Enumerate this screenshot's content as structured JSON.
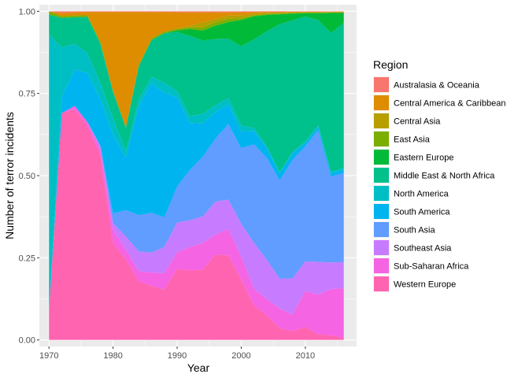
{
  "chart_data": {
    "type": "area",
    "stacked": "fill",
    "xlabel": "Year",
    "ylabel": "Number of terror incidents",
    "xlim": [
      1968.5,
      2018.0
    ],
    "ylim": [
      -0.02,
      1.02
    ],
    "x_ticks": [
      1970,
      1980,
      1990,
      2000,
      2010
    ],
    "x_tick_labels": [
      "1970",
      "1980",
      "1990",
      "2000",
      "2010"
    ],
    "y_ticks": [
      0,
      0.25,
      0.5,
      0.75,
      1.0
    ],
    "y_tick_labels": [
      "0.00",
      "0.25",
      "0.50",
      "0.75",
      "1.00"
    ],
    "grid": true,
    "background": "#EBEBEB",
    "legend": {
      "title": "Region",
      "position": "right"
    },
    "x": [
      1970,
      1972,
      1974,
      1976,
      1978,
      1980,
      1982,
      1984,
      1986,
      1988,
      1990,
      1992,
      1994,
      1996,
      1998,
      2000,
      2002,
      2004,
      2006,
      2008,
      2010,
      2012,
      2014,
      2016
    ],
    "series": [
      {
        "name": "Australasia & Oceania",
        "color": "#F8766D",
        "values": [
          0.0,
          0.005,
          0.003,
          0.002,
          0.002,
          0.002,
          0.002,
          0.002,
          0.002,
          0.002,
          0.003,
          0.003,
          0.003,
          0.003,
          0.003,
          0.003,
          0.002,
          0.002,
          0.002,
          0.001,
          0.001,
          0.001,
          0.001,
          0.001
        ]
      },
      {
        "name": "Central America & Caribbean",
        "color": "#DE8C00",
        "values": [
          0.0,
          0.01,
          0.01,
          0.01,
          0.09,
          0.24,
          0.35,
          0.16,
          0.08,
          0.06,
          0.05,
          0.04,
          0.03,
          0.02,
          0.01,
          0.01,
          0.005,
          0.003,
          0.002,
          0.002,
          0.001,
          0.001,
          0.001,
          0.001
        ]
      },
      {
        "name": "Central Asia",
        "color": "#B79F00",
        "values": [
          0.0,
          0.0,
          0.0,
          0.0,
          0.0,
          0.0,
          0.0,
          0.0,
          0.0,
          0.0,
          0.0,
          0.005,
          0.015,
          0.01,
          0.01,
          0.008,
          0.005,
          0.003,
          0.003,
          0.002,
          0.002,
          0.002,
          0.001,
          0.001
        ]
      },
      {
        "name": "East Asia",
        "color": "#7CAE00",
        "values": [
          0.01,
          0.005,
          0.005,
          0.005,
          0.005,
          0.003,
          0.003,
          0.005,
          0.005,
          0.005,
          0.005,
          0.005,
          0.01,
          0.01,
          0.01,
          0.005,
          0.003,
          0.003,
          0.002,
          0.002,
          0.002,
          0.002,
          0.002,
          0.002
        ]
      },
      {
        "name": "Eastern Europe",
        "color": "#00BA38",
        "values": [
          0.0,
          0.0,
          0.0,
          0.0,
          0.0,
          0.0,
          0.0,
          0.0,
          0.0,
          0.0,
          0.005,
          0.02,
          0.03,
          0.04,
          0.05,
          0.08,
          0.07,
          0.05,
          0.03,
          0.02,
          0.01,
          0.02,
          0.06,
          0.03
        ]
      },
      {
        "name": "Middle East & North Africa",
        "color": "#00C08B",
        "values": [
          0.06,
          0.09,
          0.08,
          0.11,
          0.12,
          0.08,
          0.07,
          0.1,
          0.11,
          0.15,
          0.18,
          0.24,
          0.22,
          0.2,
          0.18,
          0.24,
          0.27,
          0.35,
          0.45,
          0.4,
          0.38,
          0.32,
          0.42,
          0.44
        ]
      },
      {
        "name": "North America",
        "color": "#00BFC4",
        "values": [
          0.84,
          0.15,
          0.08,
          0.06,
          0.05,
          0.05,
          0.02,
          0.02,
          0.02,
          0.03,
          0.02,
          0.02,
          0.03,
          0.02,
          0.02,
          0.02,
          0.01,
          0.005,
          0.005,
          0.005,
          0.005,
          0.005,
          0.005,
          0.005
        ]
      },
      {
        "name": "South America",
        "color": "#00B4F0",
        "values": [
          0.0,
          0.05,
          0.11,
          0.15,
          0.14,
          0.24,
          0.16,
          0.33,
          0.39,
          0.38,
          0.27,
          0.14,
          0.1,
          0.08,
          0.06,
          0.05,
          0.04,
          0.03,
          0.02,
          0.02,
          0.01,
          0.01,
          0.01,
          0.01
        ]
      },
      {
        "name": "South Asia",
        "color": "#619CFF",
        "values": [
          0.0,
          0.0,
          0.0,
          0.0,
          0.005,
          0.03,
          0.08,
          0.11,
          0.12,
          0.09,
          0.11,
          0.15,
          0.18,
          0.19,
          0.23,
          0.23,
          0.3,
          0.31,
          0.3,
          0.36,
          0.35,
          0.4,
          0.26,
          0.27
        ]
      },
      {
        "name": "Southeast Asia",
        "color": "#C77CFF",
        "values": [
          0.0,
          0.0,
          0.0,
          0.0,
          0.005,
          0.02,
          0.04,
          0.06,
          0.06,
          0.08,
          0.09,
          0.08,
          0.08,
          0.1,
          0.09,
          0.1,
          0.14,
          0.12,
          0.09,
          0.11,
          0.09,
          0.1,
          0.08,
          0.08
        ]
      },
      {
        "name": "Sub-Saharan Africa",
        "color": "#F564E3",
        "values": [
          0.0,
          0.0,
          0.01,
          0.01,
          0.02,
          0.04,
          0.03,
          0.03,
          0.04,
          0.05,
          0.05,
          0.07,
          0.08,
          0.06,
          0.08,
          0.07,
          0.05,
          0.05,
          0.06,
          0.05,
          0.11,
          0.12,
          0.14,
          0.15
        ]
      },
      {
        "name": "Western Europe",
        "color": "#FF64B0",
        "values": [
          0.09,
          0.69,
          0.702,
          0.653,
          0.563,
          0.295,
          0.245,
          0.178,
          0.163,
          0.153,
          0.217,
          0.207,
          0.212,
          0.257,
          0.257,
          0.183,
          0.105,
          0.074,
          0.036,
          0.027,
          0.039,
          0.017,
          0.014,
          0.006
        ]
      }
    ]
  }
}
